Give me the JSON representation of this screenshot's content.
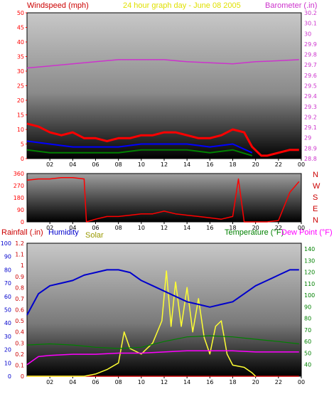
{
  "header": {
    "left_title": "Windspeed (mph)",
    "center_title": "24 hour graph day - June 08 2005",
    "right_title": "Barometer (.in)"
  },
  "direction_labels": [
    "N",
    "W",
    "S",
    "E",
    "N"
  ],
  "lower_labels": {
    "rainfall": "Rainfall (.in)",
    "humidity": "Humidity",
    "solar": "Solar",
    "temperature": "Temperature (°F)",
    "dewpoint": "Dew Point (°F)"
  },
  "colors": {
    "windspeed": "#ff0000",
    "wind_avg": "#0000ff",
    "wind_low": "#008000",
    "barometer": "#cc33cc",
    "direction": "#ff0000",
    "rainfall_axis": "#cc0000",
    "humidity": "#0000cc",
    "solar": "#ffff33",
    "temperature": "#008000",
    "dewpoint": "#ff00ff",
    "center_title": "#e0e000"
  },
  "chart_data": [
    {
      "name": "wind_barometer",
      "type": "line",
      "x_ticks": [
        "02",
        "04",
        "06",
        "08",
        "10",
        "12",
        "14",
        "16",
        "18",
        "20",
        "22",
        "00"
      ],
      "y_left_ticks": [
        "0",
        "5",
        "10",
        "15",
        "20",
        "25",
        "30",
        "35",
        "40",
        "45",
        "50"
      ],
      "y_left_range": [
        0,
        50
      ],
      "y_right_ticks": [
        "28.8",
        "28.9",
        "29",
        "29.1",
        "29.2",
        "29.3",
        "29.4",
        "29.5",
        "29.6",
        "29.7",
        "29.8",
        "29.9",
        "30",
        "30.1",
        "30.2"
      ],
      "y_right_range": [
        28.8,
        30.2
      ],
      "series": [
        {
          "name": "Windspeed (mph)",
          "axis": "left",
          "x": [
            0,
            1,
            2,
            3,
            4,
            5,
            6,
            7,
            8,
            9,
            10,
            11,
            12,
            13,
            14,
            15,
            16,
            17,
            18,
            19,
            19.7,
            20.5,
            21,
            22,
            23,
            23.8
          ],
          "y": [
            12,
            11,
            9,
            8,
            9,
            7,
            7,
            6,
            7,
            7,
            8,
            8,
            9,
            9,
            8,
            7,
            7,
            8,
            10,
            9,
            4,
            1,
            1,
            2,
            3,
            3
          ]
        },
        {
          "name": "Average windspeed",
          "axis": "left",
          "x": [
            0,
            2,
            4,
            6,
            8,
            10,
            12,
            14,
            16,
            18,
            19.7
          ],
          "y": [
            6,
            5,
            4,
            4,
            4,
            5,
            5,
            5,
            4,
            5,
            2
          ]
        },
        {
          "name": "Low windspeed",
          "axis": "left",
          "x": [
            0,
            2,
            4,
            6,
            8,
            10,
            12,
            14,
            16,
            18,
            19.7
          ],
          "y": [
            3,
            2,
            2,
            2,
            2,
            3,
            3,
            3,
            2,
            3,
            1
          ]
        },
        {
          "name": "Barometer (.in)",
          "axis": "right",
          "x": [
            0,
            2,
            4,
            6,
            8,
            10,
            12,
            14,
            16,
            18,
            20,
            22,
            23.8
          ],
          "y": [
            29.67,
            29.69,
            29.71,
            29.73,
            29.75,
            29.75,
            29.75,
            29.73,
            29.72,
            29.71,
            29.73,
            29.74,
            29.75
          ]
        }
      ]
    },
    {
      "name": "wind_direction",
      "type": "line",
      "x_ticks": [
        "02",
        "04",
        "06",
        "08",
        "10",
        "12",
        "14",
        "16",
        "18",
        "20",
        "22",
        "00"
      ],
      "y_ticks": [
        "0",
        "90",
        "180",
        "270",
        "360"
      ],
      "y_range": [
        0,
        360
      ],
      "series": [
        {
          "name": "Wind direction",
          "x": [
            0,
            1,
            2,
            3,
            4,
            5,
            5.2,
            6,
            7,
            8,
            9,
            10,
            11,
            12,
            13,
            14,
            15,
            16,
            17,
            18,
            18.5,
            19,
            20,
            21,
            22,
            23,
            23.8
          ],
          "y": [
            310,
            320,
            320,
            330,
            330,
            320,
            0,
            20,
            40,
            40,
            50,
            60,
            60,
            80,
            60,
            50,
            40,
            30,
            20,
            40,
            320,
            0,
            0,
            0,
            10,
            220,
            300
          ]
        }
      ]
    },
    {
      "name": "rain_humidity_solar_temperature",
      "type": "line",
      "x_ticks": [
        "02",
        "04",
        "06",
        "08",
        "10",
        "12",
        "14",
        "16",
        "18",
        "20",
        "22",
        "00"
      ],
      "y_rain_ticks": [
        "0",
        "0.1",
        "0.2",
        "0.3",
        "0.4",
        "0.5",
        "0.6",
        "0.7",
        "0.8",
        "0.9",
        "1",
        "1.1",
        "1.2"
      ],
      "y_rain_range": [
        0,
        1.2
      ],
      "y_humidity_ticks": [
        "0",
        "10",
        "20",
        "30",
        "40",
        "50",
        "60",
        "70",
        "80",
        "90",
        "100"
      ],
      "y_humidity_range": [
        0,
        100
      ],
      "y_temp_ticks": [
        "40",
        "50",
        "60",
        "70",
        "80",
        "90",
        "100",
        "110",
        "120",
        "130",
        "140"
      ],
      "y_temp_range": [
        30,
        145
      ],
      "series": [
        {
          "name": "Humidity",
          "axis": "humidity",
          "x": [
            0,
            1,
            2,
            3,
            4,
            5,
            6,
            7,
            8,
            9,
            10,
            11,
            12,
            13,
            14,
            15,
            16,
            17,
            18,
            19,
            20,
            21,
            22,
            23,
            23.8
          ],
          "y": [
            46,
            62,
            68,
            70,
            72,
            76,
            78,
            80,
            80,
            78,
            72,
            68,
            64,
            60,
            56,
            54,
            52,
            54,
            56,
            62,
            68,
            72,
            76,
            80,
            80
          ]
        },
        {
          "name": "Temperature (°F)",
          "axis": "temp",
          "x": [
            0,
            2,
            4,
            6,
            8,
            10,
            12,
            14,
            16,
            18,
            20,
            22,
            23.8
          ],
          "y": [
            57,
            58,
            57,
            55,
            54,
            55,
            60,
            64,
            65,
            64,
            62,
            60,
            58
          ]
        },
        {
          "name": "Dew Point (°F)",
          "axis": "temp",
          "x": [
            0,
            1,
            2,
            4,
            6,
            8,
            10,
            12,
            14,
            16,
            18,
            20,
            22,
            23.8
          ],
          "y": [
            40,
            47,
            48,
            49,
            49,
            50,
            50,
            51,
            52,
            52,
            52,
            51,
            51,
            51
          ]
        },
        {
          "name": "Solar",
          "axis": "rain",
          "x": [
            0,
            5,
            6,
            7,
            8,
            8.5,
            9,
            10,
            11,
            11.8,
            12.2,
            12.6,
            13,
            13.5,
            14,
            14.5,
            15,
            15.5,
            16,
            16.5,
            17,
            17.5,
            18,
            19,
            19.7,
            20
          ],
          "y": [
            0,
            0,
            0.02,
            0.06,
            0.12,
            0.4,
            0.25,
            0.2,
            0.3,
            0.5,
            0.95,
            0.45,
            0.85,
            0.45,
            0.8,
            0.4,
            0.7,
            0.35,
            0.2,
            0.45,
            0.5,
            0.2,
            0.1,
            0.08,
            0.03,
            0
          ]
        },
        {
          "name": "Rainfall (.in)",
          "axis": "rain",
          "x": [
            0,
            23.8
          ],
          "y": [
            0,
            0
          ]
        }
      ]
    }
  ]
}
